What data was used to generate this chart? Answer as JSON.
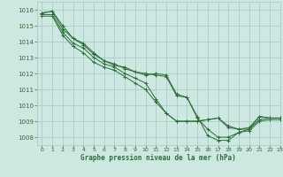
{
  "title": "Graphe pression niveau de la mer (hPa)",
  "background_color": "#cce8e0",
  "grid_color": "#aacccc",
  "line_color": "#2d6b3a",
  "xlim": [
    -0.5,
    23
  ],
  "ylim": [
    1007.5,
    1016.5
  ],
  "yticks": [
    1008,
    1009,
    1010,
    1011,
    1012,
    1013,
    1014,
    1015,
    1016
  ],
  "xticks": [
    0,
    1,
    2,
    3,
    4,
    5,
    6,
    7,
    8,
    9,
    10,
    11,
    12,
    13,
    14,
    15,
    16,
    17,
    18,
    19,
    20,
    21,
    22,
    23
  ],
  "series": [
    [
      1015.8,
      1015.9,
      1014.8,
      1014.2,
      1013.8,
      1013.2,
      1012.8,
      1012.5,
      1012.4,
      1012.1,
      1012.0,
      1011.9,
      1011.8,
      1010.6,
      1010.5,
      1009.3,
      1008.1,
      1007.8,
      1007.8,
      1008.3,
      1008.4,
      1009.0,
      1009.1,
      1009.1
    ],
    [
      1015.8,
      1015.9,
      1015.0,
      1014.2,
      1013.9,
      1013.3,
      1012.8,
      1012.6,
      1012.3,
      1012.1,
      1011.9,
      1012.0,
      1011.9,
      1010.7,
      1010.5,
      1009.2,
      1008.5,
      1008.0,
      1008.0,
      1008.3,
      1008.5,
      1009.1,
      1009.2,
      1009.2
    ],
    [
      1015.7,
      1015.7,
      1014.6,
      1013.9,
      1013.6,
      1013.0,
      1012.6,
      1012.4,
      1012.0,
      1011.7,
      1011.4,
      1010.4,
      1009.5,
      1009.0,
      1009.0,
      1009.0,
      1009.1,
      1009.2,
      1008.7,
      1008.5,
      1008.6,
      1009.3,
      1009.2,
      1009.2
    ],
    [
      1015.6,
      1015.6,
      1014.4,
      1013.7,
      1013.3,
      1012.7,
      1012.4,
      1012.2,
      1011.8,
      1011.4,
      1011.0,
      1010.2,
      1009.5,
      1009.0,
      1009.0,
      1009.0,
      1009.1,
      1009.2,
      1008.6,
      1008.5,
      1008.5,
      1009.3,
      1009.2,
      1009.2
    ]
  ]
}
